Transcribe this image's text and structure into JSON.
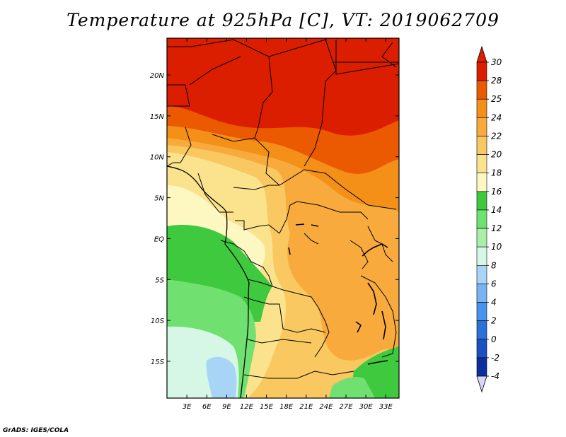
{
  "title": "Temperature at 925hPa [C], VT: 2019062709",
  "credit": "GrADS: IGES/COLA",
  "lat_labels": [
    "20N",
    "15N",
    "10N",
    "5N",
    "EQ",
    "5S",
    "10S",
    "15S"
  ],
  "lon_labels": [
    "3E",
    "6E",
    "9E",
    "12E",
    "15E",
    "18E",
    "21E",
    "24E",
    "27E",
    "30E",
    "33E"
  ],
  "colorbar": {
    "labels": [
      "30",
      "28",
      "25",
      "24",
      "22",
      "20",
      "18",
      "16",
      "14",
      "12",
      "10",
      "8",
      "6",
      "4",
      "2",
      "0",
      "-2",
      "-4"
    ],
    "colors": [
      "#dc1e00",
      "#eb5a00",
      "#f48f18",
      "#f8ab3c",
      "#fac860",
      "#fbe38e",
      "#fdf7c2",
      "#3ec93e",
      "#70e070",
      "#a8f0a8",
      "#d6f7e6",
      "#a8d5f5",
      "#78b4f2",
      "#4892ec",
      "#2a72d8",
      "#1a50c0",
      "#0c2ea0",
      "#000a6a"
    ],
    "top_color": "#dc1e00",
    "bottom_color": "#d6d6f8"
  },
  "map": {
    "domain": {
      "lon_min": 0,
      "lon_max": 35,
      "lat_min": -19.5,
      "lat_max": 24.5
    },
    "zones": [
      {
        "name": "zone-sahara-north",
        "color": "#dc1e00"
      },
      {
        "name": "zone-sahel-hot",
        "color": "#eb5a00"
      },
      {
        "name": "zone-savanna-warm",
        "color": "#f48f18"
      },
      {
        "name": "zone-central-warm",
        "color": "#f8ab3c"
      },
      {
        "name": "zone-congo-basin",
        "color": "#fac860"
      },
      {
        "name": "zone-coastal-mild",
        "color": "#fbe38e"
      },
      {
        "name": "zone-gulf-guinea",
        "color": "#fdf7c2"
      },
      {
        "name": "zone-atlantic-green",
        "color": "#3ec93e"
      },
      {
        "name": "zone-atlantic-light-green",
        "color": "#70e070"
      },
      {
        "name": "zone-ocean-pale",
        "color": "#d6f7e6"
      },
      {
        "name": "zone-ocean-blue",
        "color": "#a8d5f5"
      }
    ]
  }
}
